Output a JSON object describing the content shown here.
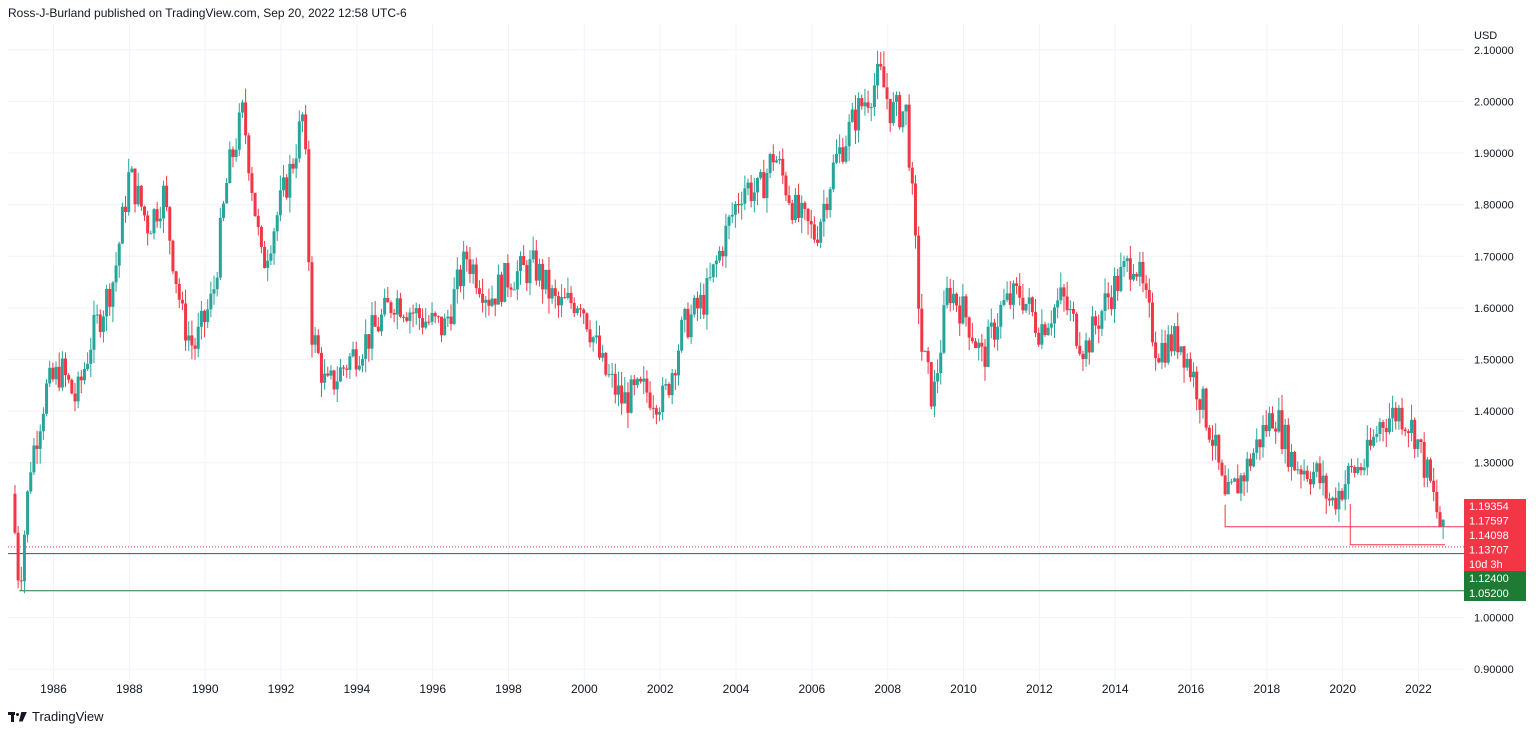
{
  "header": {
    "published": "Ross-J-Burland published on TradingView.com, Sep 20, 2022 12:58 UTC-6"
  },
  "footer": {
    "brand": "TradingView"
  },
  "colors": {
    "up": "#26a69a",
    "down": "#f23645",
    "grid": "#f0f3fa",
    "text": "#131722",
    "support": "#1e7b34"
  },
  "chart_data": {
    "type": "candlestick",
    "currency": "USD",
    "x_range": [
      1984.8,
      2023.2
    ],
    "ylim": [
      0.85,
      2.15
    ],
    "y_ticks": [
      "2.10000",
      "2.00000",
      "1.90000",
      "1.80000",
      "1.70000",
      "1.60000",
      "1.50000",
      "1.40000",
      "1.30000",
      "1.00000",
      "0.90000"
    ],
    "x_ticks": [
      "1986",
      "1988",
      "1990",
      "1992",
      "1994",
      "1996",
      "1998",
      "2000",
      "2002",
      "2004",
      "2006",
      "2008",
      "2010",
      "2012",
      "2014",
      "2016",
      "2018",
      "2020",
      "2022"
    ],
    "price_path": [
      [
        1984.9,
        1.24
      ],
      [
        1985.1,
        1.06
      ],
      [
        1985.4,
        1.3
      ],
      [
        1985.8,
        1.44
      ],
      [
        1986.2,
        1.48
      ],
      [
        1986.6,
        1.42
      ],
      [
        1987.0,
        1.54
      ],
      [
        1987.6,
        1.66
      ],
      [
        1988.0,
        1.86
      ],
      [
        1988.5,
        1.76
      ],
      [
        1988.9,
        1.82
      ],
      [
        1989.4,
        1.58
      ],
      [
        1989.7,
        1.52
      ],
      [
        1990.2,
        1.62
      ],
      [
        1990.6,
        1.86
      ],
      [
        1991.0,
        1.98
      ],
      [
        1991.5,
        1.68
      ],
      [
        1991.9,
        1.78
      ],
      [
        1992.3,
        1.88
      ],
      [
        1992.6,
        1.98
      ],
      [
        1992.8,
        1.56
      ],
      [
        1993.2,
        1.44
      ],
      [
        1993.8,
        1.5
      ],
      [
        1994.5,
        1.56
      ],
      [
        1995.0,
        1.62
      ],
      [
        1995.7,
        1.58
      ],
      [
        1996.3,
        1.56
      ],
      [
        1996.9,
        1.7
      ],
      [
        1997.5,
        1.62
      ],
      [
        1998.0,
        1.66
      ],
      [
        1998.7,
        1.68
      ],
      [
        1999.3,
        1.6
      ],
      [
        1999.9,
        1.62
      ],
      [
        2000.5,
        1.48
      ],
      [
        2001.0,
        1.42
      ],
      [
        2001.6,
        1.44
      ],
      [
        2002.1,
        1.42
      ],
      [
        2002.6,
        1.56
      ],
      [
        2003.2,
        1.62
      ],
      [
        2003.8,
        1.76
      ],
      [
        2004.2,
        1.84
      ],
      [
        2004.6,
        1.82
      ],
      [
        2005.0,
        1.9
      ],
      [
        2005.6,
        1.78
      ],
      [
        2006.1,
        1.74
      ],
      [
        2006.6,
        1.88
      ],
      [
        2007.2,
        1.98
      ],
      [
        2007.8,
        2.05
      ],
      [
        2008.1,
        1.98
      ],
      [
        2008.5,
        1.98
      ],
      [
        2008.9,
        1.52
      ],
      [
        2009.2,
        1.42
      ],
      [
        2009.6,
        1.64
      ],
      [
        2010.1,
        1.58
      ],
      [
        2010.5,
        1.5
      ],
      [
        2011.0,
        1.6
      ],
      [
        2011.5,
        1.63
      ],
      [
        2012.0,
        1.56
      ],
      [
        2012.6,
        1.62
      ],
      [
        2013.2,
        1.52
      ],
      [
        2013.8,
        1.62
      ],
      [
        2014.5,
        1.7
      ],
      [
        2015.1,
        1.52
      ],
      [
        2015.7,
        1.54
      ],
      [
        2016.2,
        1.44
      ],
      [
        2016.6,
        1.34
      ],
      [
        2016.9,
        1.22
      ],
      [
        2017.4,
        1.28
      ],
      [
        2017.9,
        1.36
      ],
      [
        2018.2,
        1.4
      ],
      [
        2018.7,
        1.3
      ],
      [
        2019.3,
        1.28
      ],
      [
        2019.7,
        1.22
      ],
      [
        2020.2,
        1.28
      ],
      [
        2020.6,
        1.3
      ],
      [
        2021.0,
        1.38
      ],
      [
        2021.5,
        1.4
      ],
      [
        2021.9,
        1.36
      ],
      [
        2022.3,
        1.26
      ],
      [
        2022.7,
        1.14
      ]
    ],
    "price_labels": [
      {
        "text": "1.19354",
        "value": 1.19354,
        "kind": "red"
      },
      {
        "text": "1.17597",
        "value": 1.17597,
        "kind": "red"
      },
      {
        "text": "1.14098",
        "value": 1.14098,
        "kind": "red"
      },
      {
        "text": "1.13707",
        "value": 1.13707,
        "kind": "red"
      },
      {
        "text": "10d 3h",
        "value": 1.124,
        "kind": "red-countdown"
      },
      {
        "text": "1.12400",
        "value": 1.124,
        "kind": "green"
      },
      {
        "text": "1.05200",
        "value": 1.052,
        "kind": "green"
      }
    ],
    "levels": [
      {
        "value": 1.052,
        "from": 1985.1,
        "color": "green"
      },
      {
        "value": 1.124,
        "from": 1984.8,
        "color": "dark"
      },
      {
        "value": 1.13707,
        "from": 1984.8,
        "color": "dotted"
      },
      {
        "value": 1.17597,
        "from": 2016.9,
        "color": "red"
      },
      {
        "value": 1.14098,
        "from": 2020.2,
        "color": "red-box",
        "top": 1.22
      }
    ]
  }
}
